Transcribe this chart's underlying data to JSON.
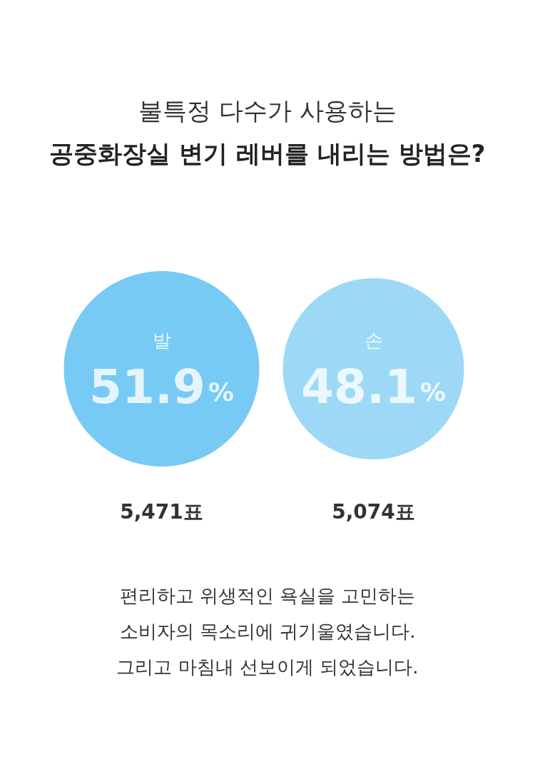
{
  "chart_data": {
    "type": "other",
    "subtitle": "불특정 다수가 사용하는",
    "title": "공중화장실 변기 레버를 내리는 방법은?",
    "categories": [
      "발",
      "손"
    ],
    "values": [
      51.9,
      48.1
    ],
    "value_labels": [
      "51.9%",
      "48.1%"
    ],
    "colors": [
      "#55bdf0",
      "#84cff4"
    ],
    "annotations": [
      {
        "text": "5,471표",
        "x": "발"
      },
      {
        "text": "5,074표",
        "x": "손"
      },
      "편리하고 위생적인 욕실을 고민하는\n소비자의 목소리에 귀기울였습니다.\n그리고 마침내 선보이게 되었습니다."
    ]
  }
}
